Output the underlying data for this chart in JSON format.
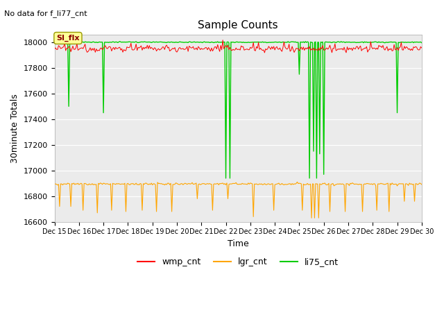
{
  "title": "Sample Counts",
  "subtitle": "No data for f_li77_cnt",
  "xlabel": "Time",
  "ylabel": "30minute Totals",
  "ylim": [
    16600,
    18060
  ],
  "xlim": [
    0,
    360
  ],
  "x_tick_labels": [
    "Dec 15",
    "Dec 16",
    "Dec 17",
    "Dec 18",
    "Dec 19",
    "Dec 20",
    "Dec 21",
    "Dec 22",
    "Dec 23",
    "Dec 24",
    "Dec 25",
    "Dec 26",
    "Dec 27",
    "Dec 28",
    "Dec 29",
    "Dec 30"
  ],
  "x_tick_positions": [
    0,
    24,
    48,
    72,
    96,
    120,
    144,
    168,
    192,
    216,
    240,
    264,
    288,
    312,
    336,
    360
  ],
  "wmp_base": 17950,
  "lgr_base": 16895,
  "li75_base": 18000,
  "wmp_noise": 12,
  "wmp_color": "#ff0000",
  "lgr_color": "#ffa500",
  "li75_color": "#00cc00",
  "bg_color": "#ebebeb",
  "legend_box_color": "#ffff99",
  "annotation_label": "SI_flx",
  "li75_spikes": [
    [
      14,
      17500
    ],
    [
      48,
      17450
    ],
    [
      168,
      16940
    ],
    [
      172,
      16940
    ],
    [
      240,
      17750
    ],
    [
      250,
      16940
    ],
    [
      254,
      17150
    ],
    [
      257,
      16940
    ],
    [
      260,
      17130
    ],
    [
      264,
      16970
    ],
    [
      336,
      17450
    ]
  ],
  "lgr_spikes": [
    [
      5,
      16720
    ],
    [
      16,
      16720
    ],
    [
      28,
      16690
    ],
    [
      42,
      16670
    ],
    [
      56,
      16690
    ],
    [
      70,
      16680
    ],
    [
      86,
      16690
    ],
    [
      100,
      16680
    ],
    [
      115,
      16680
    ],
    [
      140,
      16780
    ],
    [
      155,
      16690
    ],
    [
      170,
      16780
    ],
    [
      195,
      16640
    ],
    [
      215,
      16690
    ],
    [
      243,
      16690
    ],
    [
      252,
      16630
    ],
    [
      255,
      16630
    ],
    [
      259,
      16630
    ],
    [
      270,
      16680
    ],
    [
      285,
      16680
    ],
    [
      302,
      16680
    ],
    [
      316,
      16690
    ],
    [
      328,
      16680
    ],
    [
      343,
      16760
    ],
    [
      353,
      16760
    ]
  ]
}
